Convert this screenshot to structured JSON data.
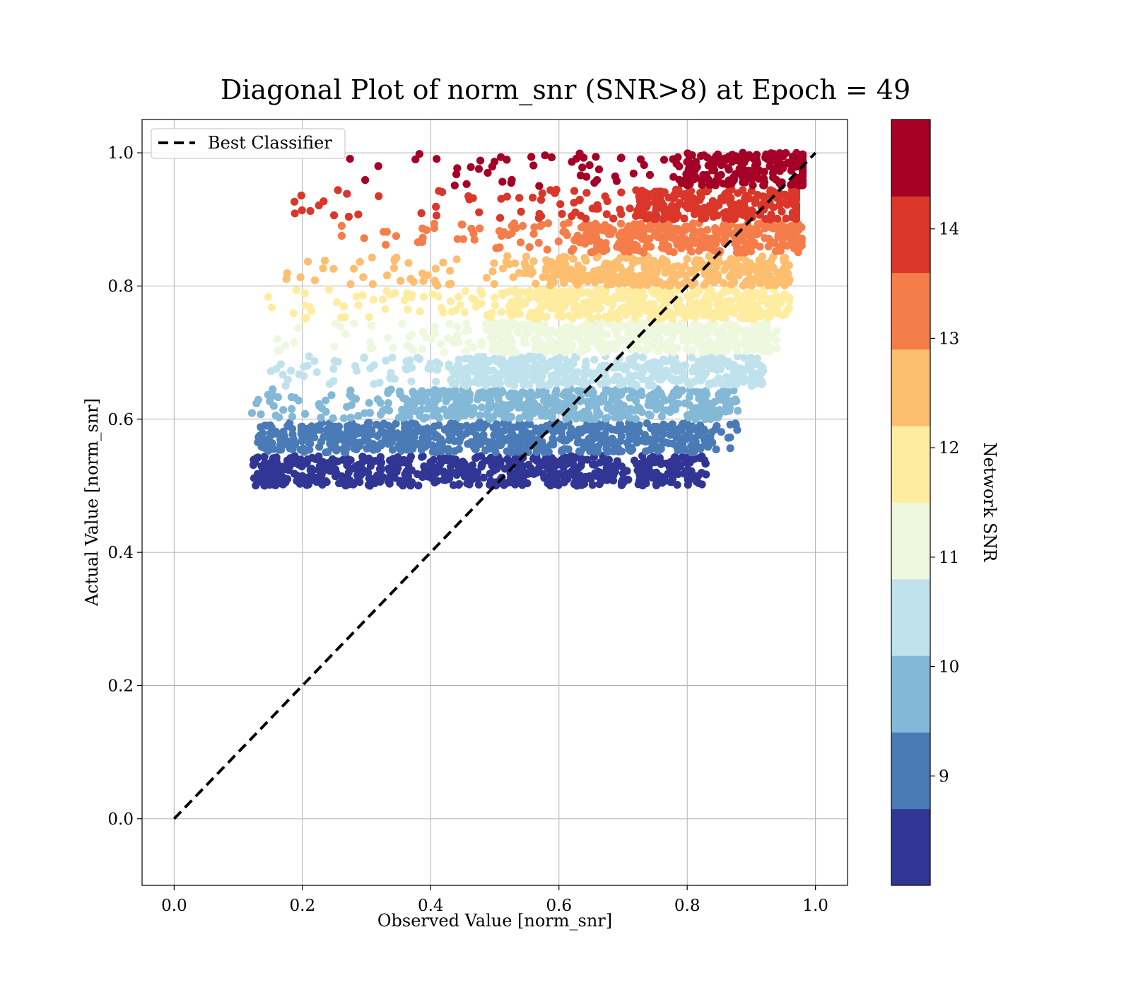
{
  "chart_data": {
    "type": "scatter",
    "title": "Diagonal Plot of norm_snr (SNR>8) at Epoch = 49",
    "xlabel": "Observed Value [norm_snr]",
    "ylabel": "Actual Value [norm_snr]",
    "xlim": [
      -0.05,
      1.05
    ],
    "ylim": [
      -0.1,
      1.05
    ],
    "xticks": [
      "0.0",
      "0.2",
      "0.4",
      "0.6",
      "0.8",
      "1.0"
    ],
    "yticks": [
      "0.0",
      "0.2",
      "0.4",
      "0.6",
      "0.8",
      "1.0"
    ],
    "grid": true,
    "legend": {
      "placement": "upper-left",
      "entries": [
        "Best Classifier"
      ]
    },
    "reference_line": {
      "name": "Best Classifier",
      "style": "dashed",
      "color": "#000000",
      "x": [
        0.0,
        1.0
      ],
      "y": [
        0.0,
        1.0
      ]
    },
    "colorbar": {
      "label": "Network SNR",
      "range": [
        8,
        15
      ],
      "ticks": [
        "9",
        "10",
        "11",
        "12",
        "13",
        "14"
      ],
      "bins": [
        {
          "from": 8.0,
          "to": 8.7,
          "color": "#313695"
        },
        {
          "from": 8.7,
          "to": 9.4,
          "color": "#4a7bb7"
        },
        {
          "from": 9.4,
          "to": 10.1,
          "color": "#83b8d7"
        },
        {
          "from": 10.1,
          "to": 10.8,
          "color": "#c0e2ec"
        },
        {
          "from": 10.8,
          "to": 11.5,
          "color": "#eef8df"
        },
        {
          "from": 11.5,
          "to": 12.2,
          "color": "#feeda0"
        },
        {
          "from": 12.2,
          "to": 12.9,
          "color": "#fdbe70"
        },
        {
          "from": 12.9,
          "to": 13.6,
          "color": "#f57d4a"
        },
        {
          "from": 13.6,
          "to": 14.3,
          "color": "#da362a"
        },
        {
          "from": 14.3,
          "to": 15.0,
          "color": "#a50026"
        }
      ]
    },
    "bands": [
      {
        "y": [
          0.5,
          0.545
        ],
        "x_core": [
          0.16,
          0.8
        ],
        "x_scatter": [
          0.12,
          0.83
        ],
        "color": "#313695"
      },
      {
        "y": [
          0.55,
          0.595
        ],
        "x_core": [
          0.2,
          0.82
        ],
        "x_scatter": [
          0.13,
          0.88
        ],
        "color": "#4a7bb7"
      },
      {
        "y": [
          0.6,
          0.645
        ],
        "x_core": [
          0.36,
          0.85
        ],
        "x_scatter": [
          0.12,
          0.88
        ],
        "color": "#83b8d7"
      },
      {
        "y": [
          0.65,
          0.695
        ],
        "x_core": [
          0.44,
          0.9
        ],
        "x_scatter": [
          0.15,
          0.92
        ],
        "color": "#c0e2ec"
      },
      {
        "y": [
          0.7,
          0.745
        ],
        "x_core": [
          0.5,
          0.92
        ],
        "x_scatter": [
          0.15,
          0.94
        ],
        "color": "#eef8df"
      },
      {
        "y": [
          0.75,
          0.795
        ],
        "x_core": [
          0.52,
          0.93
        ],
        "x_scatter": [
          0.14,
          0.96
        ],
        "color": "#feeda0"
      },
      {
        "y": [
          0.8,
          0.845
        ],
        "x_core": [
          0.58,
          0.95
        ],
        "x_scatter": [
          0.16,
          0.96
        ],
        "color": "#fdbe70"
      },
      {
        "y": [
          0.85,
          0.895
        ],
        "x_core": [
          0.64,
          0.97
        ],
        "x_scatter": [
          0.25,
          0.98
        ],
        "color": "#f57d4a"
      },
      {
        "y": [
          0.9,
          0.945
        ],
        "x_core": [
          0.72,
          0.97
        ],
        "x_scatter": [
          0.18,
          0.97
        ],
        "color": "#da362a"
      },
      {
        "y": [
          0.95,
          1.0
        ],
        "x_core": [
          0.8,
          0.98
        ],
        "x_scatter": [
          0.27,
          0.98
        ],
        "color": "#a50026"
      }
    ]
  }
}
